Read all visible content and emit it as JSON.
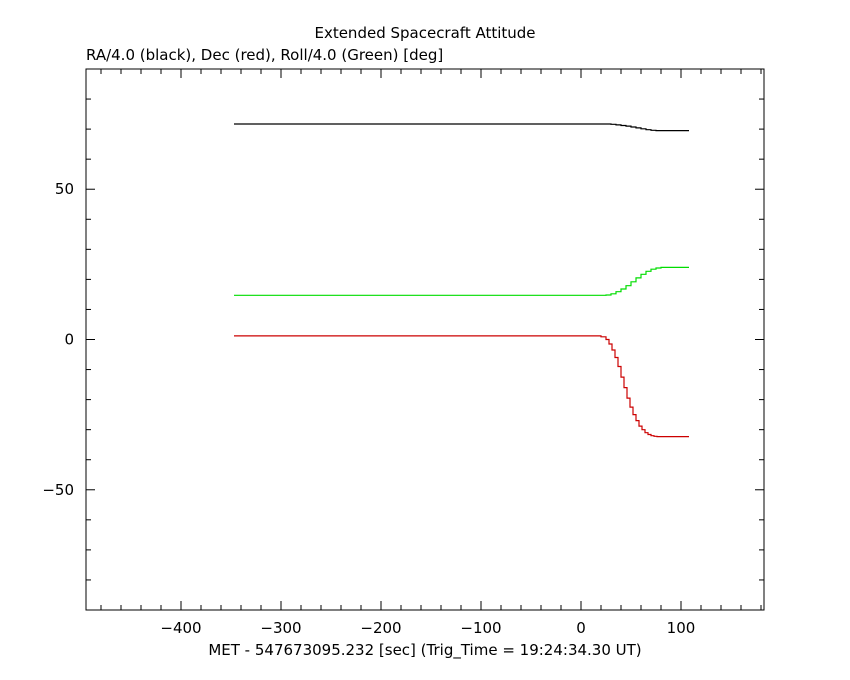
{
  "chart_data": {
    "type": "line",
    "title": "Extended Spacecraft Attitude",
    "ylabel": "RA/4.0 (black), Dec (red), Roll/4.0 (Green) [deg]",
    "xlabel": "MET - 547673095.232 [sec] (Trig_Time = 19:24:34.30 UT)",
    "xlim": [
      -495,
      183
    ],
    "ylim": [
      -90,
      90
    ],
    "xticks": [
      -400,
      -300,
      -200,
      -100,
      0,
      100
    ],
    "xtick_labels": [
      "−400",
      "−300",
      "−200",
      "−100",
      "0",
      "100"
    ],
    "yticks": [
      -50,
      0,
      50
    ],
    "ytick_labels": [
      "−50",
      "0",
      "50"
    ],
    "grid": false,
    "series": [
      {
        "name": "RA/4.0 (black)",
        "color": "#000000",
        "step": true,
        "x": [
          -347,
          25,
          30,
          35,
          40,
          45,
          50,
          55,
          60,
          65,
          70,
          75,
          108
        ],
        "y": [
          71.7,
          71.7,
          71.6,
          71.4,
          71.2,
          71.0,
          70.7,
          70.4,
          70.1,
          69.8,
          69.6,
          69.5,
          69.5
        ]
      },
      {
        "name": "Dec (red)",
        "color": "#cc0000",
        "step": true,
        "x": [
          -347,
          15,
          20,
          25,
          28,
          31,
          34,
          37,
          40,
          43,
          46,
          49,
          52,
          55,
          58,
          61,
          64,
          67,
          70,
          73,
          76,
          79,
          82,
          108
        ],
        "y": [
          1.2,
          1.2,
          0.9,
          0,
          -1.5,
          -3.5,
          -6,
          -9,
          -12.5,
          -16,
          -19.5,
          -22.5,
          -25,
          -27,
          -28.8,
          -30,
          -31,
          -31.6,
          -32,
          -32.2,
          -32.3,
          -32.3,
          -32.3,
          -32.3
        ]
      },
      {
        "name": "Roll/4.0 (Green)",
        "color": "#00dd00",
        "step": true,
        "x": [
          -347,
          20,
          25,
          30,
          35,
          40,
          45,
          50,
          55,
          60,
          65,
          70,
          75,
          80,
          108
        ],
        "y": [
          14.7,
          14.7,
          14.8,
          15.2,
          15.9,
          16.8,
          17.9,
          19.2,
          20.5,
          21.7,
          22.7,
          23.4,
          23.8,
          24.0,
          24.0
        ]
      }
    ]
  }
}
